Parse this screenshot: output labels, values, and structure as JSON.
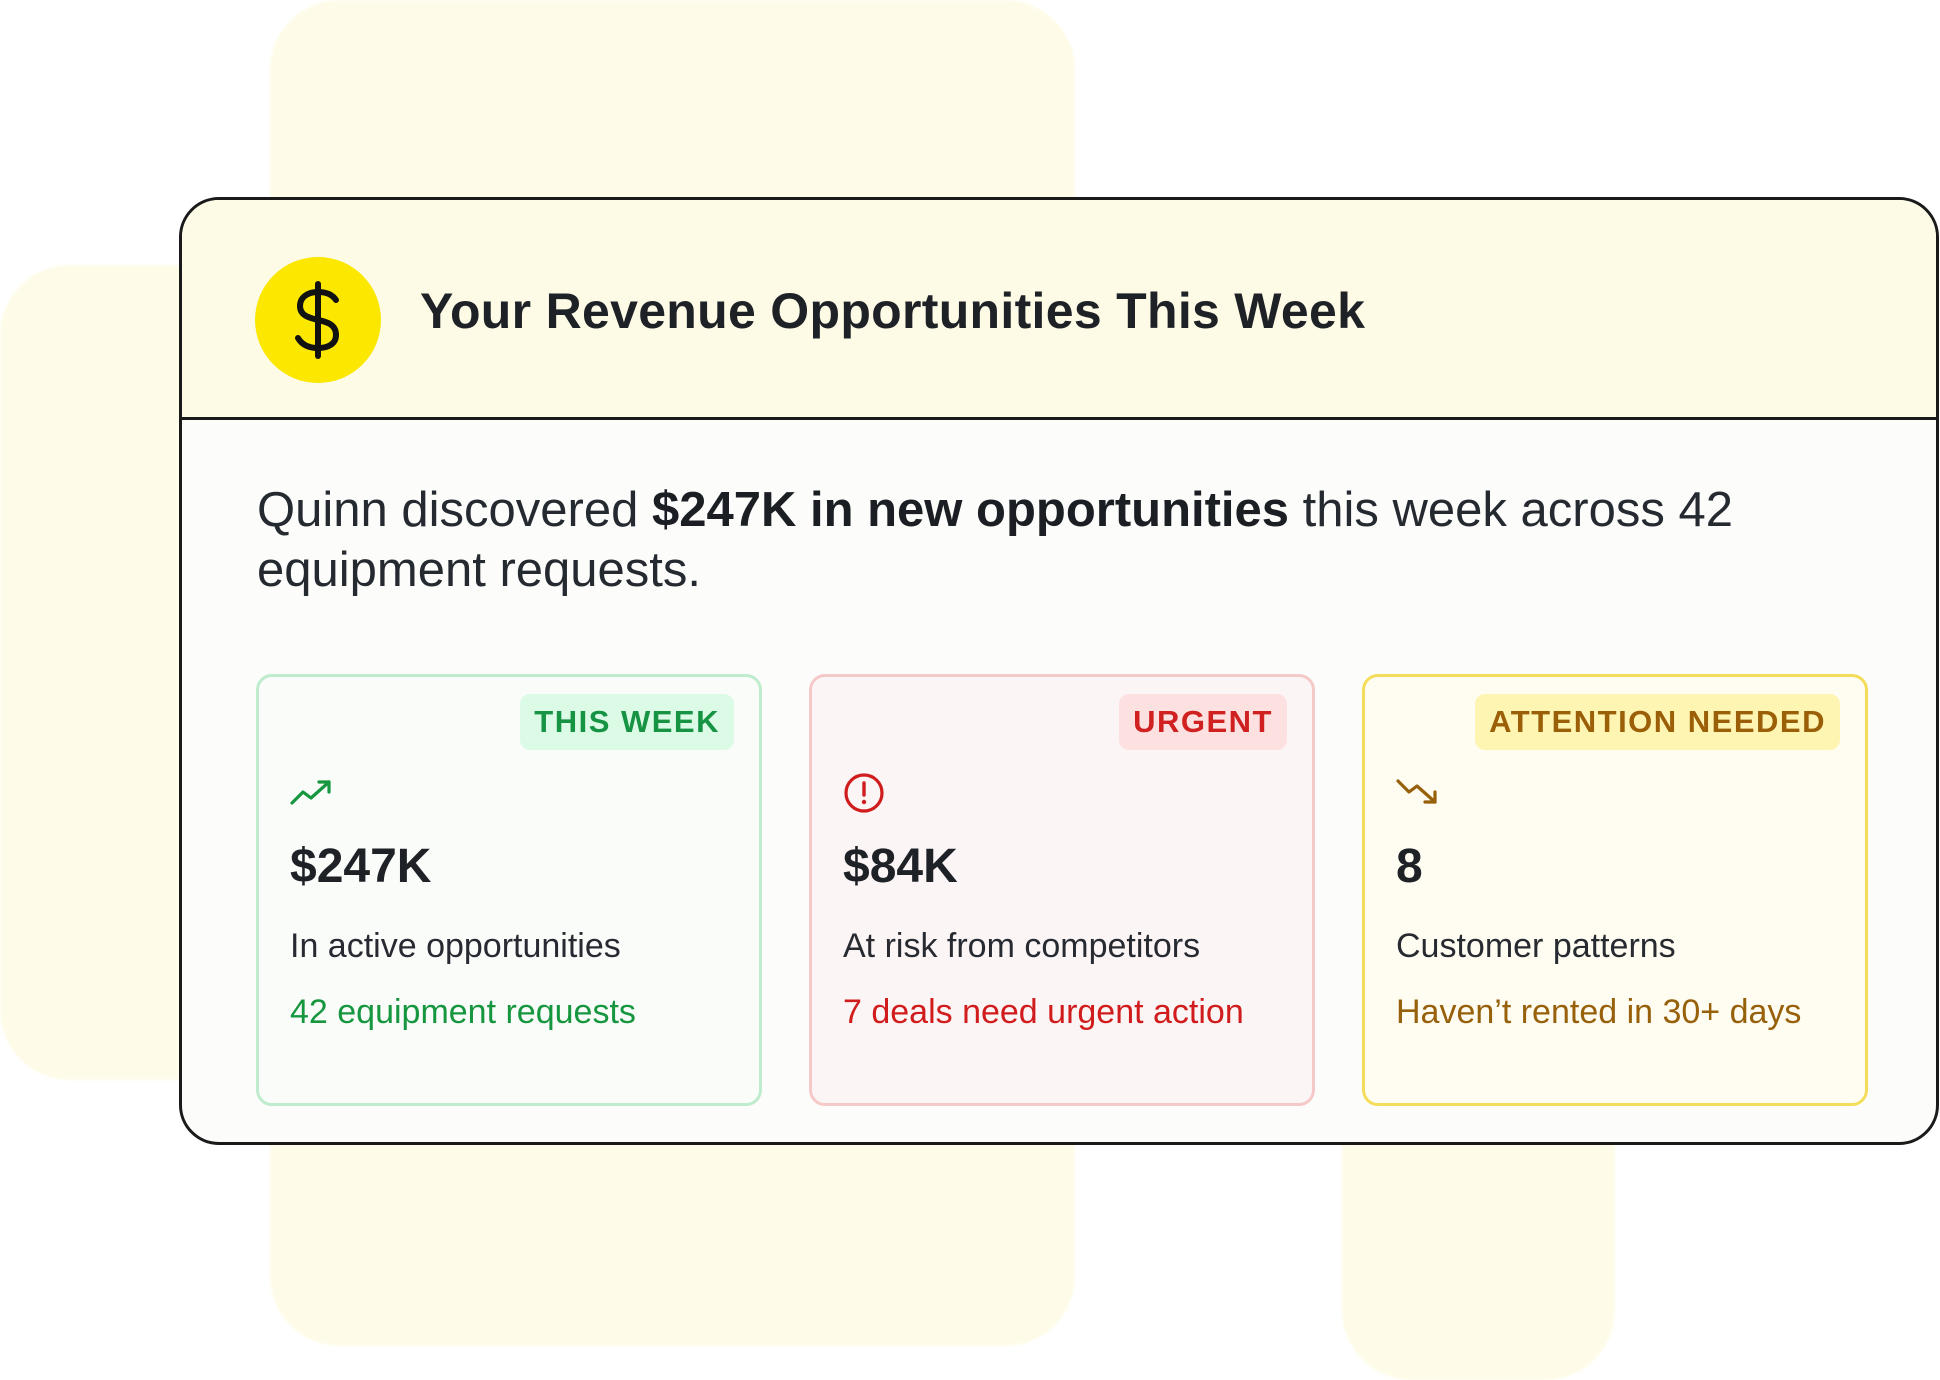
{
  "colors": {
    "brand_yellow": "#fce700",
    "green": "#16963f",
    "red": "#d01c1c",
    "amber": "#97600b"
  },
  "header": {
    "icon": "dollar-icon",
    "title": "Your Revenue Opportunities This Week"
  },
  "summary": {
    "prefix": "Quinn discovered ",
    "highlight": "$247K in new opportunities",
    "suffix": " this week across 42 equipment requests."
  },
  "metrics": [
    {
      "badge": "THIS WEEK",
      "icon": "trending-up-icon",
      "value": "$247K",
      "label": "In active opportunities",
      "note": "42 equipment requests"
    },
    {
      "badge": "URGENT",
      "icon": "alert-circle-icon",
      "value": "$84K",
      "label": "At risk from competitors",
      "note": "7 deals need urgent action"
    },
    {
      "badge": "ATTENTION NEEDED",
      "icon": "trending-down-icon",
      "value": "8",
      "label": "Customer patterns",
      "note": "Haven’t rented in 30+ days"
    }
  ]
}
